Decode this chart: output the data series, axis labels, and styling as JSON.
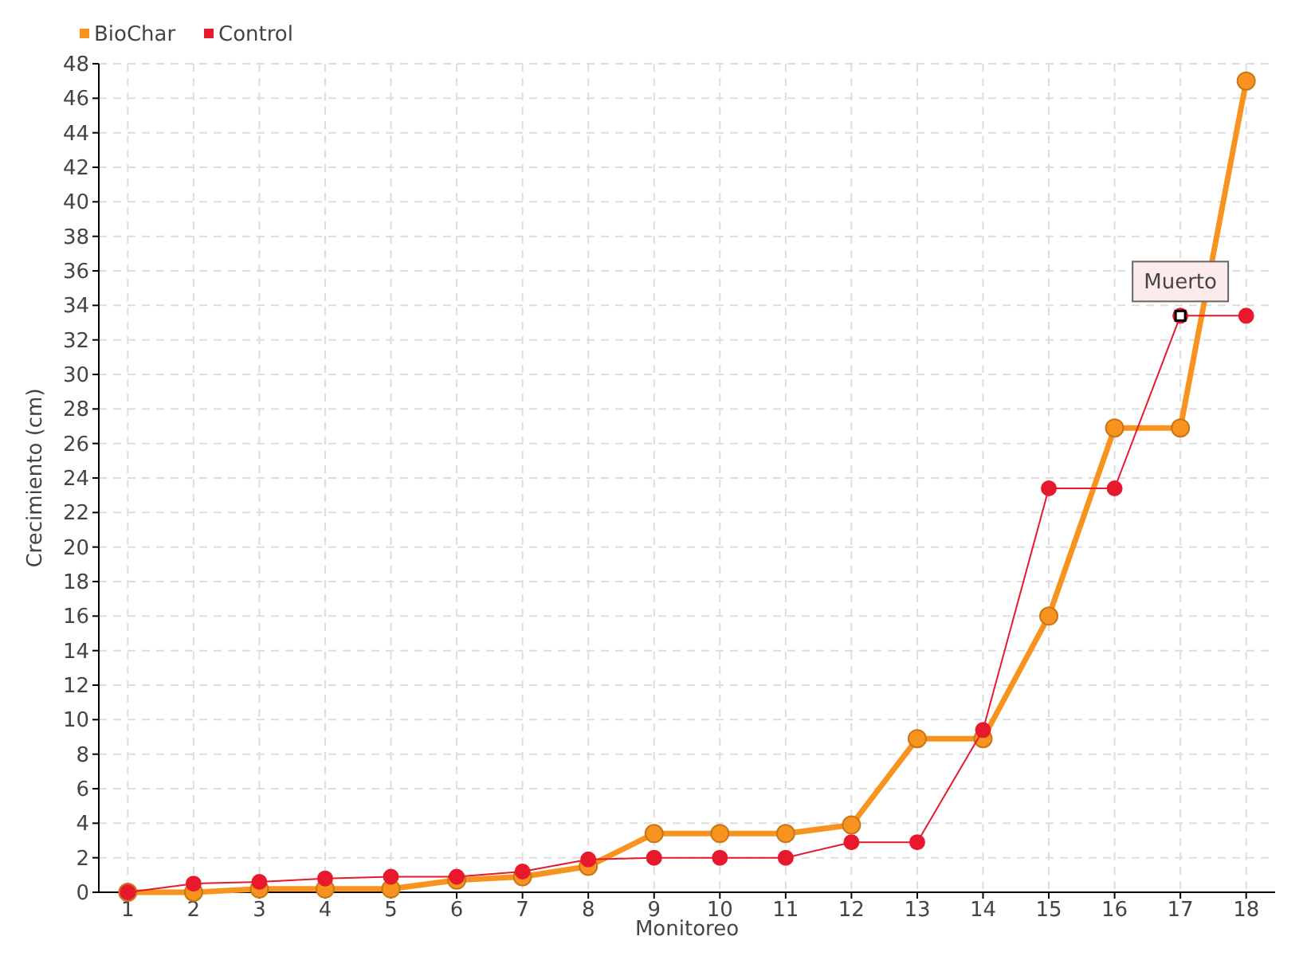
{
  "chart_data": {
    "type": "line",
    "xlabel": "Monitoreo",
    "ylabel": "Crecimiento (cm)",
    "categories": [
      "1",
      "2",
      "3",
      "4",
      "5",
      "6",
      "7",
      "8",
      "9",
      "10",
      "11",
      "12",
      "13",
      "14",
      "15",
      "16",
      "17",
      "18"
    ],
    "series": [
      {
        "name": "BioChar",
        "color": "#f7931e",
        "values": [
          0,
          0,
          0.2,
          0.2,
          0.2,
          0.7,
          0.9,
          1.5,
          3.4,
          3.4,
          3.4,
          3.9,
          8.9,
          8.9,
          16,
          26.9,
          26.9,
          47
        ]
      },
      {
        "name": "Control",
        "color": "#e8192c",
        "values": [
          0,
          0.5,
          0.6,
          0.8,
          0.9,
          0.9,
          1.2,
          1.9,
          2,
          2,
          2,
          2.9,
          2.9,
          9.4,
          23.4,
          23.4,
          33.4,
          33.4
        ]
      }
    ],
    "ylim": [
      0,
      48
    ],
    "yticks": [
      0,
      2,
      4,
      6,
      8,
      10,
      12,
      14,
      16,
      18,
      20,
      22,
      24,
      26,
      28,
      30,
      32,
      34,
      36,
      38,
      40,
      42,
      44,
      46,
      48
    ],
    "grid": true,
    "legend": "top left",
    "marker": "circle",
    "annotations": [
      {
        "text": "Muerto",
        "x": "17",
        "y": 33.4
      }
    ]
  }
}
